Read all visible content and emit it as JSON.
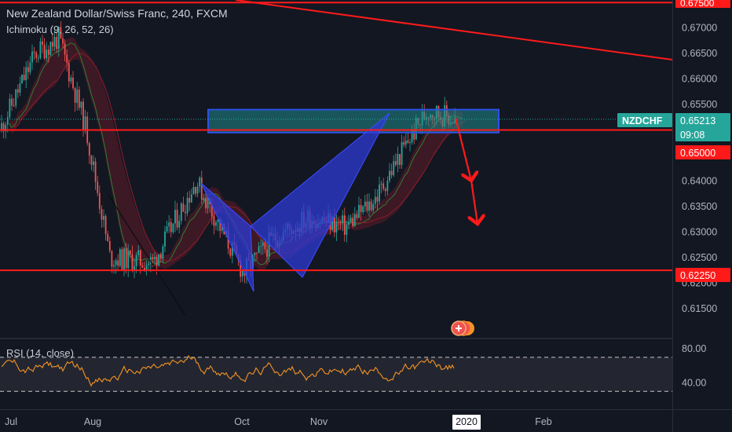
{
  "header": {
    "title": "New Zealand Dollar/Swiss Franc, 240, FXCM",
    "indicator": "Ichimoku (9, 26, 52, 26)"
  },
  "rsi": {
    "label": "RSI (14, close)",
    "levels": [
      70,
      30
    ],
    "axis_labels": [
      "80.00",
      "40.00"
    ]
  },
  "price_axis": {
    "tick_labels": [
      "0.67000",
      "0.66500",
      "0.66000",
      "0.65500",
      "0.64000",
      "0.63500",
      "0.63000",
      "0.62500",
      "0.62000",
      "0.61500"
    ],
    "top_marker": "0.67500",
    "symbol_badge": "NZDCHF",
    "last_price": "0.65213",
    "countdown": "09:08",
    "level_badges": [
      "0.65000",
      "0.62250"
    ]
  },
  "time_axis": {
    "labels": [
      "Jul",
      "Aug",
      "Oct",
      "Nov",
      "2020",
      "Feb"
    ]
  },
  "colors": {
    "background": "#131722",
    "candle_up": "#26a69a",
    "candle_down": "#ef5350",
    "level_line": "#ff1a1a",
    "pattern_fill": "#2d3bd6",
    "zone_fill": "#1f8a8a",
    "rsi_line": "#f59325",
    "badge_teal": "#26a69a",
    "badge_red": "#ff1a1a"
  },
  "chart_data": {
    "type": "line",
    "instrument": "NZDCHF",
    "timeframe": "240",
    "ylim": [
      0.6105,
      0.6755
    ],
    "series": [
      {
        "name": "NZDCHF",
        "x": [
          "Jul",
          "Jul",
          "Jul",
          "Aug",
          "Aug",
          "Aug",
          "Aug",
          "Oct",
          "Oct",
          "Oct",
          "Nov",
          "Nov",
          "Nov",
          "Nov",
          "2020"
        ],
        "values": [
          0.65,
          0.665,
          0.668,
          0.65,
          0.625,
          0.624,
          0.64,
          0.622,
          0.629,
          0.633,
          0.631,
          0.637,
          0.648,
          0.654,
          0.652
        ]
      }
    ],
    "horizontal_levels": [
      0.675,
      0.65,
      0.6225
    ],
    "zone": [
      0.6495,
      0.654
    ],
    "last_price": 0.65213,
    "rsi": {
      "levels": [
        70,
        30
      ]
    }
  }
}
